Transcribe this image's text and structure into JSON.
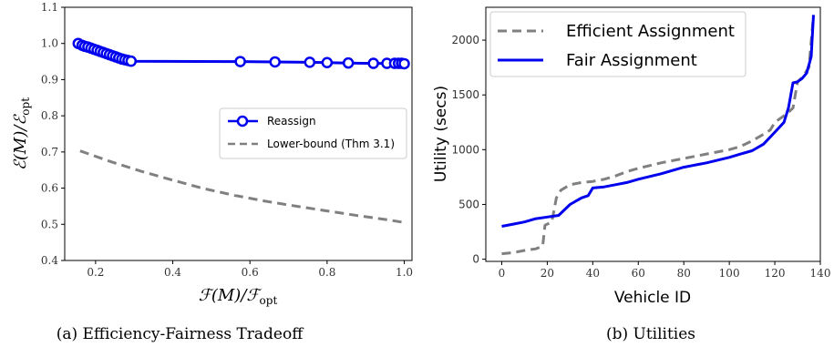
{
  "chart_data": [
    {
      "type": "line",
      "panel": "a",
      "caption": "(a) Efficiency-Fairness Tradeoff",
      "xlabel": "F(M)/F_opt",
      "ylabel": "E(M)/E_opt",
      "xlim": [
        0.12,
        1.02
      ],
      "ylim": [
        0.4,
        1.1
      ],
      "xticks": [
        "0.2",
        "0.4",
        "0.6",
        "0.8",
        "1.0"
      ],
      "yticks": [
        "0.4",
        "0.5",
        "0.6",
        "0.7",
        "0.8",
        "0.9",
        "1.0",
        "1.1"
      ],
      "grid": false,
      "legend_position": "center-right",
      "series": [
        {
          "name": "Reassign",
          "style": "solid-with-circle-markers",
          "color": "#0000ee",
          "x": [
            0.155,
            0.165,
            0.172,
            0.18,
            0.188,
            0.196,
            0.204,
            0.212,
            0.22,
            0.228,
            0.236,
            0.244,
            0.252,
            0.26,
            0.268,
            0.276,
            0.284,
            0.292,
            0.575,
            0.665,
            0.755,
            0.8,
            0.855,
            0.92,
            0.955,
            0.975,
            0.985,
            0.993,
            1.0
          ],
          "y": [
            1.0,
            0.995,
            0.992,
            0.99,
            0.987,
            0.984,
            0.981,
            0.978,
            0.975,
            0.972,
            0.969,
            0.966,
            0.963,
            0.96,
            0.957,
            0.955,
            0.953,
            0.951,
            0.95,
            0.949,
            0.948,
            0.947,
            0.946,
            0.945,
            0.945,
            0.945,
            0.945,
            0.945,
            0.944
          ]
        },
        {
          "name": "Lower-bound (Thm 3.1)",
          "style": "dashed",
          "color": "#808080",
          "x": [
            0.16,
            0.24,
            0.32,
            0.4,
            0.48,
            0.56,
            0.64,
            0.72,
            0.8,
            0.88,
            0.96,
            1.0
          ],
          "y": [
            0.703,
            0.673,
            0.646,
            0.622,
            0.599,
            0.58,
            0.564,
            0.55,
            0.537,
            0.524,
            0.512,
            0.505
          ]
        }
      ]
    },
    {
      "type": "line",
      "panel": "b",
      "caption": "(b) Utilities",
      "xlabel": "Vehicle ID",
      "ylabel": "Utility (secs)",
      "xlim": [
        -7,
        140
      ],
      "ylim": [
        -20,
        2300
      ],
      "xticks": [
        "0",
        "20",
        "40",
        "60",
        "80",
        "100",
        "120",
        "140"
      ],
      "yticks": [
        "0",
        "500",
        "1000",
        "1500",
        "2000"
      ],
      "grid": false,
      "legend_position": "top-left",
      "series": [
        {
          "name": "Efficient Assignment",
          "style": "dashed",
          "color": "#808080",
          "x": [
            0,
            5,
            10,
            15,
            18,
            19,
            22,
            24,
            26,
            30,
            35,
            40,
            45,
            50,
            55,
            60,
            70,
            80,
            90,
            100,
            105,
            110,
            115,
            118,
            120,
            124,
            126,
            128,
            130,
            132,
            135,
            137
          ],
          "y": [
            50,
            60,
            80,
            95,
            120,
            310,
            340,
            560,
            630,
            680,
            700,
            710,
            730,
            760,
            800,
            830,
            880,
            920,
            960,
            1000,
            1030,
            1080,
            1140,
            1180,
            1250,
            1310,
            1340,
            1380,
            1620,
            1660,
            1750,
            2230
          ]
        },
        {
          "name": "Fair Assignment",
          "style": "solid",
          "color": "#0000ee",
          "x": [
            0,
            5,
            10,
            15,
            20,
            25,
            30,
            35,
            38,
            40,
            45,
            50,
            55,
            60,
            70,
            80,
            90,
            100,
            105,
            110,
            115,
            120,
            124,
            126,
            128,
            130,
            132,
            134,
            136,
            137
          ],
          "y": [
            300,
            320,
            340,
            370,
            385,
            400,
            500,
            560,
            580,
            650,
            660,
            680,
            700,
            730,
            780,
            840,
            880,
            930,
            960,
            990,
            1050,
            1160,
            1250,
            1380,
            1610,
            1620,
            1650,
            1700,
            1850,
            2230
          ]
        }
      ]
    }
  ]
}
